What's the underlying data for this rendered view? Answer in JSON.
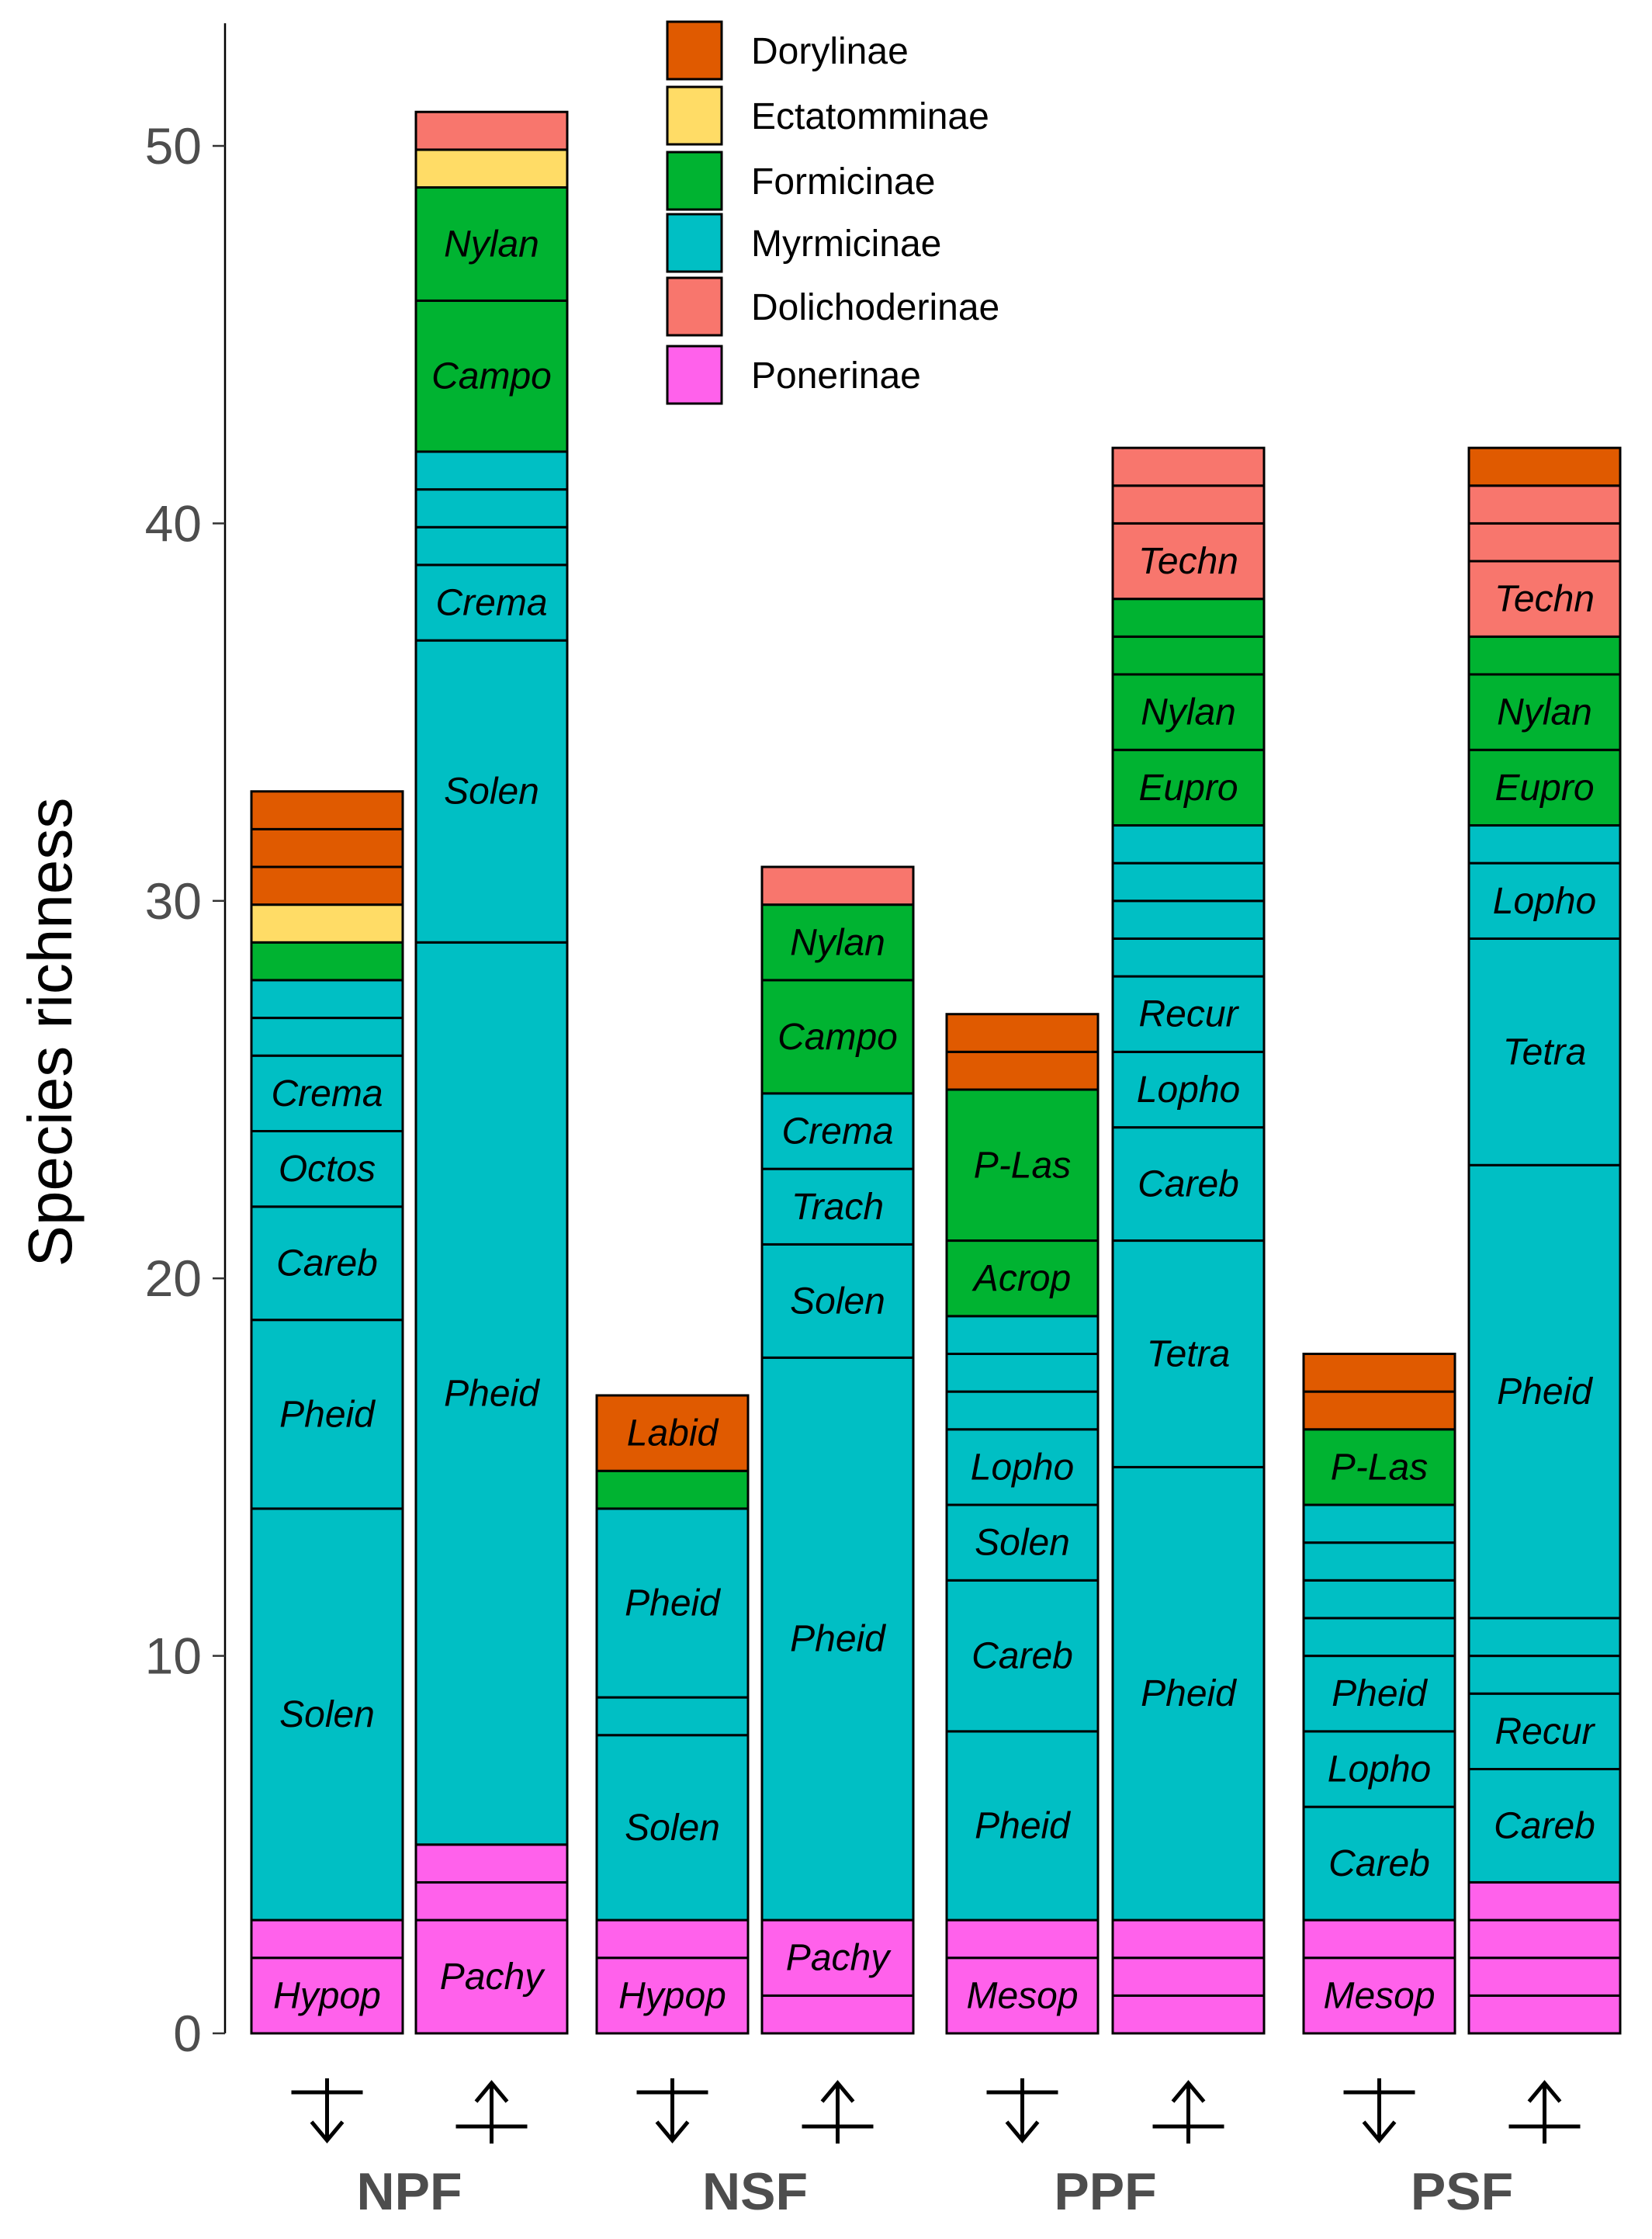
{
  "colors": {
    "Dorylinae": "#e05a00",
    "Ectatomminae": "#ffdc66",
    "Formicinae": "#00b331",
    "Myrmicinae": "#00bfc4",
    "Dolichoderinae": "#f8766d",
    "Ponerinae": "#ff61eb"
  },
  "chart_data": {
    "type": "bar",
    "stacked": true,
    "ylabel": "Species richness",
    "ylim": [
      0,
      53.3
    ],
    "yticks": [
      0,
      10,
      20,
      30,
      40,
      50
    ],
    "grid": false,
    "legend": {
      "placement": "top-center",
      "entries": [
        "Dorylinae",
        "Ectatomminae",
        "Formicinae",
        "Myrmicinae",
        "Dolichoderinae",
        "Ponerinae"
      ]
    },
    "groups": [
      "NPF",
      "NSF",
      "PPF",
      "PSF"
    ],
    "arrow_icons": [
      "down-arrow-icon",
      "up-arrow-icon"
    ],
    "bars": [
      {
        "group": "NPF",
        "arrow": "down-arrow-icon",
        "segments": [
          {
            "s": "Ponerinae",
            "v": 2,
            "g": "Hypop"
          },
          {
            "s": "Ponerinae",
            "v": 1,
            "g": ""
          },
          {
            "s": "Myrmicinae",
            "v": 10.9,
            "g": "Solen"
          },
          {
            "s": "Myrmicinae",
            "v": 5,
            "g": "Pheid"
          },
          {
            "s": "Myrmicinae",
            "v": 3,
            "g": "Careb"
          },
          {
            "s": "Myrmicinae",
            "v": 2,
            "g": "Octos"
          },
          {
            "s": "Myrmicinae",
            "v": 2,
            "g": "Crema"
          },
          {
            "s": "Myrmicinae",
            "v": 1,
            "g": ""
          },
          {
            "s": "Myrmicinae",
            "v": 1,
            "g": ""
          },
          {
            "s": "Formicinae",
            "v": 1,
            "g": ""
          },
          {
            "s": "Ectatomminae",
            "v": 1,
            "g": ""
          },
          {
            "s": "Dorylinae",
            "v": 1,
            "g": ""
          },
          {
            "s": "Dorylinae",
            "v": 1,
            "g": ""
          },
          {
            "s": "Dorylinae",
            "v": 1,
            "g": ""
          }
        ]
      },
      {
        "group": "NPF",
        "arrow": "up-arrow-icon",
        "segments": [
          {
            "s": "Ponerinae",
            "v": 3,
            "g": "Pachy"
          },
          {
            "s": "Ponerinae",
            "v": 1,
            "g": ""
          },
          {
            "s": "Ponerinae",
            "v": 1,
            "g": ""
          },
          {
            "s": "Myrmicinae",
            "v": 23.9,
            "g": "Pheid"
          },
          {
            "s": "Myrmicinae",
            "v": 8,
            "g": "Solen"
          },
          {
            "s": "Myrmicinae",
            "v": 2,
            "g": "Crema"
          },
          {
            "s": "Myrmicinae",
            "v": 1,
            "g": ""
          },
          {
            "s": "Myrmicinae",
            "v": 1,
            "g": ""
          },
          {
            "s": "Myrmicinae",
            "v": 1,
            "g": ""
          },
          {
            "s": "Formicinae",
            "v": 4,
            "g": "Campo"
          },
          {
            "s": "Formicinae",
            "v": 3,
            "g": "Nylan"
          },
          {
            "s": "Ectatomminae",
            "v": 1,
            "g": ""
          },
          {
            "s": "Dolichoderinae",
            "v": 1,
            "g": ""
          }
        ]
      },
      {
        "group": "NSF",
        "arrow": "down-arrow-icon",
        "segments": [
          {
            "s": "Ponerinae",
            "v": 2,
            "g": "Hypop"
          },
          {
            "s": "Ponerinae",
            "v": 1,
            "g": ""
          },
          {
            "s": "Myrmicinae",
            "v": 4.9,
            "g": "Solen"
          },
          {
            "s": "Myrmicinae",
            "v": 1,
            "g": ""
          },
          {
            "s": "Myrmicinae",
            "v": 5,
            "g": "Pheid"
          },
          {
            "s": "Formicinae",
            "v": 1,
            "g": ""
          },
          {
            "s": "Dorylinae",
            "v": 2,
            "g": "Labid"
          }
        ]
      },
      {
        "group": "NSF",
        "arrow": "up-arrow-icon",
        "segments": [
          {
            "s": "Ponerinae",
            "v": 1,
            "g": ""
          },
          {
            "s": "Ponerinae",
            "v": 2,
            "g": "Pachy"
          },
          {
            "s": "Myrmicinae",
            "v": 14.9,
            "g": "Pheid"
          },
          {
            "s": "Myrmicinae",
            "v": 3,
            "g": "Solen"
          },
          {
            "s": "Myrmicinae",
            "v": 2,
            "g": "Trach"
          },
          {
            "s": "Myrmicinae",
            "v": 2,
            "g": "Crema"
          },
          {
            "s": "Formicinae",
            "v": 3,
            "g": "Campo"
          },
          {
            "s": "Formicinae",
            "v": 2,
            "g": "Nylan"
          },
          {
            "s": "Dolichoderinae",
            "v": 1,
            "g": ""
          }
        ]
      },
      {
        "group": "PPF",
        "arrow": "down-arrow-icon",
        "segments": [
          {
            "s": "Ponerinae",
            "v": 2,
            "g": "Mesop"
          },
          {
            "s": "Ponerinae",
            "v": 1,
            "g": ""
          },
          {
            "s": "Myrmicinae",
            "v": 5,
            "g": "Pheid"
          },
          {
            "s": "Myrmicinae",
            "v": 4,
            "g": "Careb"
          },
          {
            "s": "Myrmicinae",
            "v": 2,
            "g": "Solen"
          },
          {
            "s": "Myrmicinae",
            "v": 2,
            "g": "Lopho"
          },
          {
            "s": "Myrmicinae",
            "v": 1,
            "g": ""
          },
          {
            "s": "Myrmicinae",
            "v": 1,
            "g": ""
          },
          {
            "s": "Myrmicinae",
            "v": 1,
            "g": ""
          },
          {
            "s": "Formicinae",
            "v": 2,
            "g": "Acrop"
          },
          {
            "s": "Formicinae",
            "v": 4,
            "g": "P-Las"
          },
          {
            "s": "Dorylinae",
            "v": 1,
            "g": ""
          },
          {
            "s": "Dorylinae",
            "v": 1,
            "g": ""
          }
        ]
      },
      {
        "group": "PPF",
        "arrow": "up-arrow-icon",
        "segments": [
          {
            "s": "Ponerinae",
            "v": 1,
            "g": ""
          },
          {
            "s": "Ponerinae",
            "v": 1,
            "g": ""
          },
          {
            "s": "Ponerinae",
            "v": 1,
            "g": ""
          },
          {
            "s": "Myrmicinae",
            "v": 12,
            "g": "Pheid"
          },
          {
            "s": "Myrmicinae",
            "v": 6,
            "g": "Tetra"
          },
          {
            "s": "Myrmicinae",
            "v": 3,
            "g": "Careb"
          },
          {
            "s": "Myrmicinae",
            "v": 2,
            "g": "Lopho"
          },
          {
            "s": "Myrmicinae",
            "v": 2,
            "g": "Recur"
          },
          {
            "s": "Myrmicinae",
            "v": 1,
            "g": ""
          },
          {
            "s": "Myrmicinae",
            "v": 1,
            "g": ""
          },
          {
            "s": "Myrmicinae",
            "v": 1,
            "g": ""
          },
          {
            "s": "Myrmicinae",
            "v": 1,
            "g": ""
          },
          {
            "s": "Formicinae",
            "v": 2,
            "g": "Eupro"
          },
          {
            "s": "Formicinae",
            "v": 2,
            "g": "Nylan"
          },
          {
            "s": "Formicinae",
            "v": 1,
            "g": ""
          },
          {
            "s": "Formicinae",
            "v": 1,
            "g": ""
          },
          {
            "s": "Dolichoderinae",
            "v": 2,
            "g": "Techn"
          },
          {
            "s": "Dolichoderinae",
            "v": 1,
            "g": ""
          },
          {
            "s": "Dolichoderinae",
            "v": 1,
            "g": ""
          }
        ]
      },
      {
        "group": "PSF",
        "arrow": "down-arrow-icon",
        "segments": [
          {
            "s": "Ponerinae",
            "v": 2,
            "g": "Mesop"
          },
          {
            "s": "Ponerinae",
            "v": 1,
            "g": ""
          },
          {
            "s": "Myrmicinae",
            "v": 3,
            "g": "Careb"
          },
          {
            "s": "Myrmicinae",
            "v": 2,
            "g": "Lopho"
          },
          {
            "s": "Myrmicinae",
            "v": 2,
            "g": "Pheid"
          },
          {
            "s": "Myrmicinae",
            "v": 1,
            "g": ""
          },
          {
            "s": "Myrmicinae",
            "v": 1,
            "g": ""
          },
          {
            "s": "Myrmicinae",
            "v": 1,
            "g": ""
          },
          {
            "s": "Myrmicinae",
            "v": 1,
            "g": ""
          },
          {
            "s": "Formicinae",
            "v": 2,
            "g": "P-Las"
          },
          {
            "s": "Dorylinae",
            "v": 1,
            "g": ""
          },
          {
            "s": "Dorylinae",
            "v": 1,
            "g": ""
          }
        ]
      },
      {
        "group": "PSF",
        "arrow": "up-arrow-icon",
        "segments": [
          {
            "s": "Ponerinae",
            "v": 1,
            "g": ""
          },
          {
            "s": "Ponerinae",
            "v": 1,
            "g": ""
          },
          {
            "s": "Ponerinae",
            "v": 1,
            "g": ""
          },
          {
            "s": "Ponerinae",
            "v": 1,
            "g": ""
          },
          {
            "s": "Myrmicinae",
            "v": 3,
            "g": "Careb"
          },
          {
            "s": "Myrmicinae",
            "v": 2,
            "g": "Recur"
          },
          {
            "s": "Myrmicinae",
            "v": 1,
            "g": ""
          },
          {
            "s": "Myrmicinae",
            "v": 1,
            "g": ""
          },
          {
            "s": "Myrmicinae",
            "v": 12,
            "g": "Pheid"
          },
          {
            "s": "Myrmicinae",
            "v": 6,
            "g": "Tetra"
          },
          {
            "s": "Myrmicinae",
            "v": 2,
            "g": "Lopho"
          },
          {
            "s": "Myrmicinae",
            "v": 1,
            "g": ""
          },
          {
            "s": "Formicinae",
            "v": 2,
            "g": "Eupro"
          },
          {
            "s": "Formicinae",
            "v": 2,
            "g": "Nylan"
          },
          {
            "s": "Formicinae",
            "v": 1,
            "g": ""
          },
          {
            "s": "Dolichoderinae",
            "v": 2,
            "g": "Techn"
          },
          {
            "s": "Dolichoderinae",
            "v": 1,
            "g": ""
          },
          {
            "s": "Dolichoderinae",
            "v": 1,
            "g": ""
          },
          {
            "s": "Dorylinae",
            "v": 1,
            "g": ""
          }
        ]
      }
    ]
  }
}
